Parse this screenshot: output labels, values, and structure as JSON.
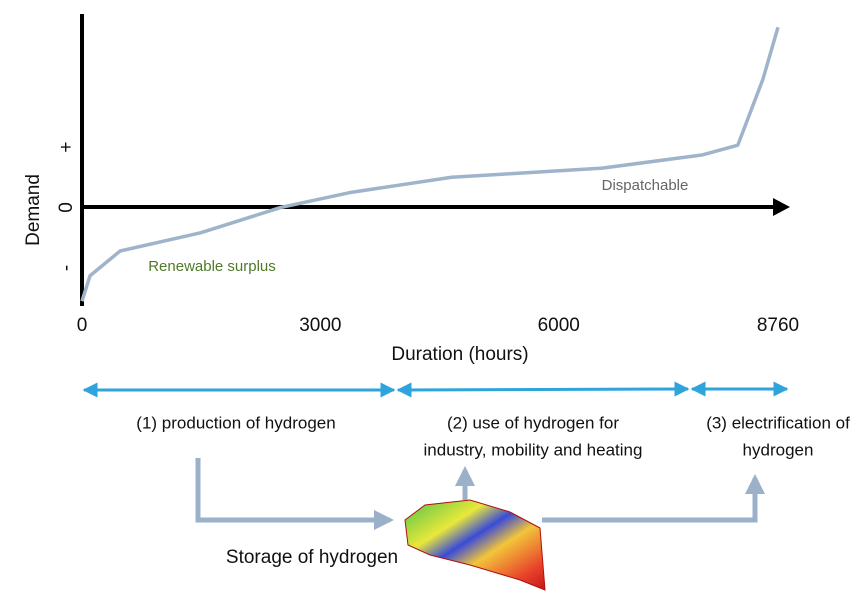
{
  "chart_data": {
    "type": "line",
    "x": [
      0,
      101,
      480,
      1492,
      2503,
      3388,
      4652,
      5284,
      6548,
      7812,
      8254,
      8570,
      8760
    ],
    "series": [
      {
        "color": "#9fb4cb",
        "values": [
          -1.55,
          -1.13,
          -0.72,
          -0.42,
          0,
          0.25,
          0.5,
          0.55,
          0.65,
          0.87,
          1.03,
          2.12,
          2.98
        ]
      }
    ],
    "xlim": [
      0,
      8760
    ],
    "xticks": [
      0,
      3000,
      6000,
      8760
    ],
    "ylim": [
      -1.63,
      3.2
    ],
    "yticks": [
      {
        "value": 1,
        "label": "+"
      },
      {
        "value": 0,
        "label": "0"
      },
      {
        "value": -1,
        "label": "-"
      }
    ],
    "x_label": "Duration (hours)",
    "y_label": "Demand",
    "annotations": {
      "dispatchable": "Dispatchable",
      "surplus": "Renewable  surplus"
    }
  },
  "phases": [
    {
      "lines": [
        "(1) production of hydrogen"
      ]
    },
    {
      "lines": [
        "(2) use of hydrogen for",
        "industry, mobility and heating"
      ]
    },
    {
      "lines": [
        "(3) electrification of",
        "hydrogen"
      ]
    }
  ],
  "storage_label": "Storage of hydrogen"
}
